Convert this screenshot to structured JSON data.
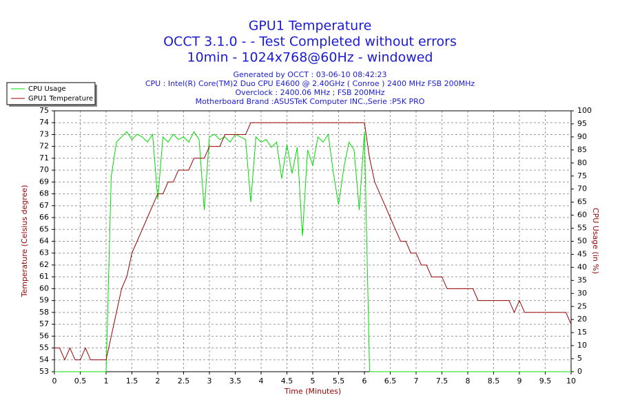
{
  "chart_data": {
    "type": "line",
    "title": [
      "GPU1 Temperature",
      "OCCT 3.1.0 -  - Test Completed without errors",
      "10min - 1024x768@60Hz - windowed"
    ],
    "subtitle": [
      "Generated by OCCT : 03-06-10 08:42:23",
      "CPU : Intel(R) Core(TM)2 Duo CPU E4600 @ 2.40GHz ( Conroe ) 2400 MHz FSB 200MHz",
      "Overclock : 2400.06 MHz ; FSB 200MHz",
      "Motherboard Brand :ASUSTeK Computer INC.,Serie :P5K PRO"
    ],
    "x_label": "Time (Minutes)",
    "y_label": "Temperature (Celsius degree)",
    "y2_label": "CPU Usage (in %)",
    "x": [
      0,
      0.1,
      0.2,
      0.3,
      0.4,
      0.5,
      0.6,
      0.7,
      0.8,
      0.9,
      1,
      1.1,
      1.2,
      1.3,
      1.4,
      1.5,
      1.6,
      1.7,
      1.8,
      1.9,
      2,
      2.1,
      2.2,
      2.3,
      2.4,
      2.5,
      2.6,
      2.7,
      2.8,
      2.9,
      3,
      3.1,
      3.2,
      3.3,
      3.4,
      3.5,
      3.6,
      3.7,
      3.8,
      3.9,
      4,
      4.1,
      4.2,
      4.3,
      4.4,
      4.5,
      4.6,
      4.7,
      4.8,
      4.9,
      5,
      5.1,
      5.2,
      5.3,
      5.4,
      5.5,
      5.6,
      5.7,
      5.8,
      5.9,
      6,
      6.1,
      6.2,
      6.3,
      6.4,
      6.5,
      6.6,
      6.7,
      6.8,
      6.9,
      7,
      7.1,
      7.2,
      7.3,
      7.4,
      7.5,
      7.6,
      7.7,
      7.8,
      7.9,
      8,
      8.1,
      8.2,
      8.3,
      8.4,
      8.5,
      8.6,
      8.7,
      8.8,
      8.9,
      9,
      9.1,
      9.2,
      9.3,
      9.4,
      9.5,
      9.6,
      9.7,
      9.8,
      9.9,
      10
    ],
    "series": [
      {
        "name": "CPU Usage",
        "color": "#00dd00",
        "axis": "y2",
        "values": [
          0,
          0,
          0,
          0,
          0,
          0,
          0,
          0,
          0,
          0,
          0,
          75,
          88,
          90,
          92,
          89,
          91,
          90,
          88,
          91,
          66,
          90,
          88,
          91,
          89,
          90,
          88,
          92,
          89,
          62,
          90,
          91,
          89,
          90,
          88,
          91,
          90,
          89,
          65,
          90,
          88,
          89,
          86,
          88,
          74,
          87,
          76,
          86,
          52,
          85,
          79,
          90,
          88,
          91,
          76,
          64,
          78,
          88,
          85,
          62,
          92,
          0,
          0,
          0,
          0,
          0,
          0,
          0,
          0,
          0,
          0,
          0,
          0,
          0,
          0,
          0,
          0,
          0,
          0,
          0,
          0,
          0,
          0,
          0,
          0,
          0,
          0,
          0,
          0,
          0,
          0,
          0,
          0,
          0,
          0,
          0,
          0,
          0,
          0,
          0,
          0
        ]
      },
      {
        "name": "GPU1 Temperature",
        "color": "#990000",
        "values": [
          55,
          55,
          54,
          55,
          54,
          54,
          55,
          54,
          54,
          54,
          54,
          56,
          58,
          60,
          61,
          63,
          64,
          65,
          66,
          67,
          68,
          68,
          69,
          69,
          70,
          70,
          70,
          71,
          71,
          71,
          72,
          72,
          72,
          73,
          73,
          73,
          73,
          73,
          74,
          74,
          74,
          74,
          74,
          74,
          74,
          74,
          74,
          74,
          74,
          74,
          74,
          74,
          74,
          74,
          74,
          74,
          74,
          74,
          74,
          74,
          74,
          71,
          69,
          68,
          67,
          66,
          65,
          64,
          64,
          63,
          63,
          62,
          62,
          61,
          61,
          61,
          60,
          60,
          60,
          60,
          60,
          60,
          59,
          59,
          59,
          59,
          59,
          59,
          59,
          58,
          59,
          58,
          58,
          58,
          58,
          58,
          58,
          58,
          58,
          58,
          57
        ]
      }
    ],
    "xlim": [
      0,
      10
    ],
    "xticks": [
      0,
      0.5,
      1,
      1.5,
      2,
      2.5,
      3,
      3.5,
      4,
      4.5,
      5,
      5.5,
      6,
      6.5,
      7,
      7.5,
      8,
      8.5,
      9,
      9.5,
      10
    ],
    "ylim": [
      53,
      75
    ],
    "yticks": [
      53,
      54,
      55,
      56,
      57,
      58,
      59,
      60,
      61,
      62,
      63,
      64,
      65,
      66,
      67,
      68,
      69,
      70,
      71,
      72,
      73,
      74,
      75
    ],
    "y2lim": [
      0,
      100
    ],
    "y2ticks": [
      0,
      5,
      10,
      15,
      20,
      25,
      30,
      35,
      40,
      45,
      50,
      55,
      60,
      65,
      70,
      75,
      80,
      85,
      90,
      95,
      100
    ],
    "grid": true,
    "legend": "upper left"
  }
}
